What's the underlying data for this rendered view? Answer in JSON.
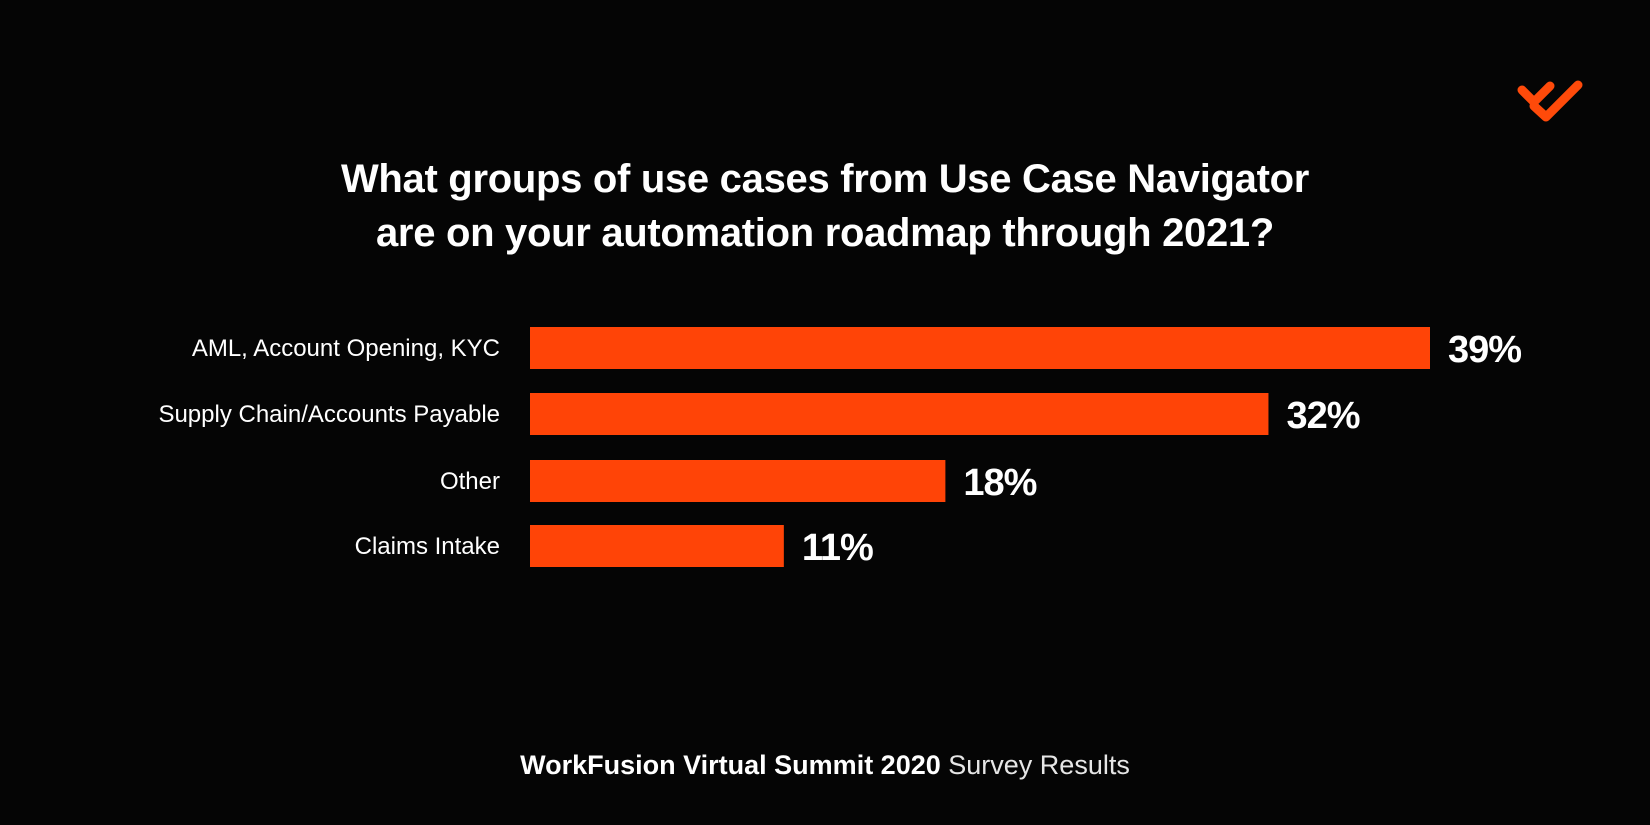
{
  "title": {
    "line1": "What groups of use cases from Use Case Navigator",
    "line2": "are on your automation roadmap through 2021?"
  },
  "footer": {
    "strong": "WorkFusion Virtual Summit 2020",
    "light": "Survey Results"
  },
  "logo": {
    "icon": "workfusion-logo-icon",
    "color": "#ff4a0a"
  },
  "colors": {
    "bar": "#ff4407",
    "background": "#050505",
    "text": "#ffffff"
  },
  "chart_data": {
    "type": "bar",
    "orientation": "horizontal",
    "categories": [
      "AML, Account Opening, KYC",
      "Supply Chain/Accounts Payable",
      "Other",
      "Claims Intake"
    ],
    "values": [
      39,
      32,
      18,
      11
    ],
    "value_labels": [
      "39%",
      "32%",
      "18%",
      "11%"
    ],
    "unit": "%",
    "xlim": [
      0,
      39
    ],
    "grid": false,
    "legend": "none"
  }
}
